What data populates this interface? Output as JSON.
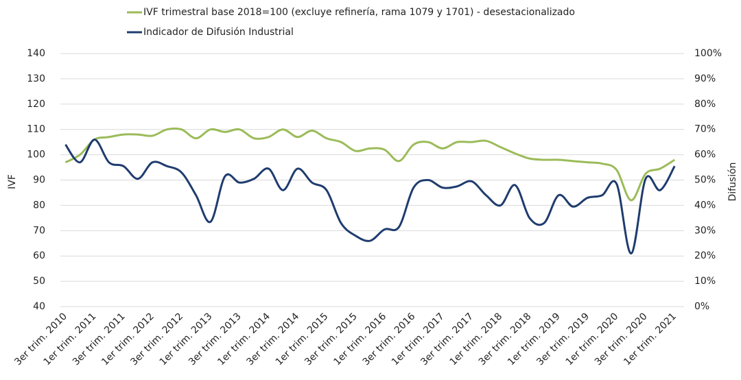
{
  "chart_data": {
    "type": "line",
    "categories": [
      "3er trim. 2010",
      null,
      "1er trim. 2011",
      null,
      "3er trim. 2011",
      null,
      "1er trim. 2012",
      null,
      "3er trim. 2012",
      null,
      "1er trim. 2013",
      null,
      "3er trim. 2013",
      null,
      "1er trim. 2014",
      null,
      "3er trim. 2014",
      null,
      "1er trim. 2015",
      null,
      "3er trim. 2015",
      null,
      "1er trim. 2016",
      null,
      "3er trim. 2016",
      null,
      "1er trim. 2017",
      null,
      "3er trim. 2017",
      null,
      "1er trim. 2018",
      null,
      "3er trim. 2018",
      null,
      "1er trim. 2019",
      null,
      "3er trim. 2019",
      null,
      "1er trim. 2020",
      null,
      "3er trim. 2020",
      null,
      "1er trim. 2021"
    ],
    "series": [
      {
        "name": "IVF trimestral base 2018=100 (excluye refinería, rama 1079 y 1701) - desestacionalizado",
        "color": "#9bbb59",
        "values": [
          97,
          100,
          106,
          107,
          108,
          108,
          107.5,
          110,
          110,
          106.5,
          110,
          109,
          110,
          106.5,
          107,
          110,
          107,
          109.5,
          106.5,
          105,
          101.5,
          102.5,
          102,
          97.5,
          104,
          105,
          102.5,
          105,
          105,
          105.5,
          103,
          100.5,
          98.5,
          98,
          98,
          97.5,
          97,
          96.5,
          94,
          82,
          92.5,
          94.5,
          98
        ]
      },
      {
        "name": "Indicador de Difusión Industrial",
        "color": "#1f3c6e",
        "axis": "y2",
        "values": [
          64,
          57,
          66,
          57,
          55.5,
          50.5,
          57,
          55.5,
          53,
          44,
          33.5,
          51.5,
          49,
          50.5,
          54.5,
          46,
          54.5,
          49,
          46,
          33,
          28,
          26,
          30.5,
          31.5,
          47,
          50,
          47,
          47.5,
          49.5,
          44,
          40,
          48,
          35,
          33,
          44,
          39.5,
          43,
          44,
          48.5,
          21,
          50.5,
          46,
          55.5
        ]
      }
    ],
    "y_label": "IVF",
    "y2_label": "Difusión",
    "ylim": [
      40,
      140
    ],
    "yticks": [
      40,
      50,
      60,
      70,
      80,
      90,
      100,
      110,
      120,
      130,
      140
    ],
    "y2lim": [
      0,
      100
    ],
    "y2ticks": [
      {
        "value": 0,
        "label": "0%"
      },
      {
        "value": 10,
        "label": "10%"
      },
      {
        "value": 20,
        "label": "20%"
      },
      {
        "value": 30,
        "label": "30%"
      },
      {
        "value": 40,
        "label": "40%"
      },
      {
        "value": 50,
        "label": "50%"
      },
      {
        "value": 60,
        "label": "60%"
      },
      {
        "value": 70,
        "label": "70%"
      },
      {
        "value": 80,
        "label": "80%"
      },
      {
        "value": 90,
        "label": "90%"
      },
      {
        "value": 100,
        "label": "100%"
      }
    ],
    "grid": true,
    "legend": "top"
  }
}
